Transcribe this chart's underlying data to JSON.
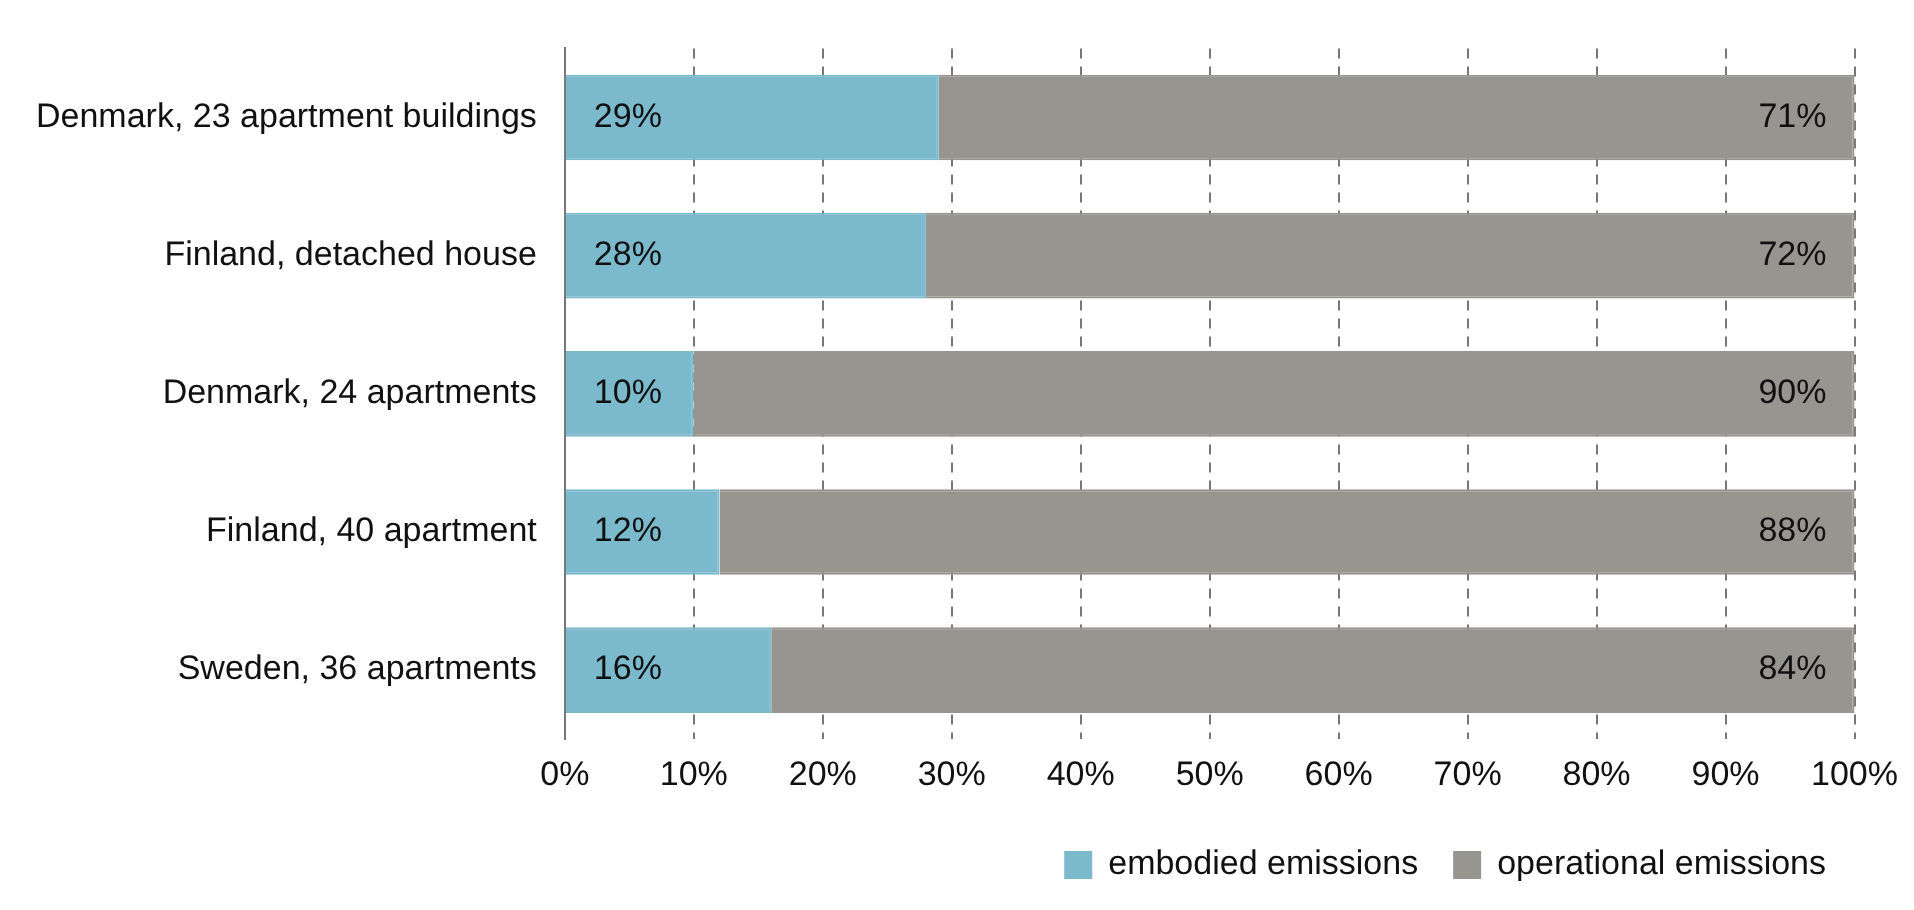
{
  "chart_data": {
    "type": "bar",
    "orientation": "horizontal",
    "stacked": true,
    "categories": [
      "Denmark, 23 apartment buildings",
      "Finland, detached house",
      "Denmark, 24 apartments",
      "Finland, 40 apartment",
      "Sweden, 36 apartments"
    ],
    "series": [
      {
        "name": "embodied emissions",
        "color": "#7bb9cc",
        "values": [
          29,
          28,
          10,
          12,
          16
        ],
        "value_labels": [
          "29%",
          "28%",
          "10%",
          "12%",
          "16%"
        ]
      },
      {
        "name": "operational emissions",
        "color": "#97958f",
        "values": [
          71,
          72,
          90,
          88,
          84
        ],
        "value_labels": [
          "71%",
          "72%",
          "90%",
          "88%",
          "84%"
        ]
      }
    ],
    "xlim": [
      0,
      100
    ],
    "xticks": [
      {
        "value": 0,
        "label": "0%"
      },
      {
        "value": 10,
        "label": "10%"
      },
      {
        "value": 20,
        "label": "20%"
      },
      {
        "value": 30,
        "label": "30%"
      },
      {
        "value": 40,
        "label": "40%"
      },
      {
        "value": 50,
        "label": "50%"
      },
      {
        "value": 60,
        "label": "60%"
      },
      {
        "value": 70,
        "label": "70%"
      },
      {
        "value": 80,
        "label": "80%"
      },
      {
        "value": 90,
        "label": "90%"
      },
      {
        "value": 100,
        "label": "100%"
      }
    ],
    "grid": "x",
    "line_style": "dashed",
    "legend": "bottom"
  }
}
